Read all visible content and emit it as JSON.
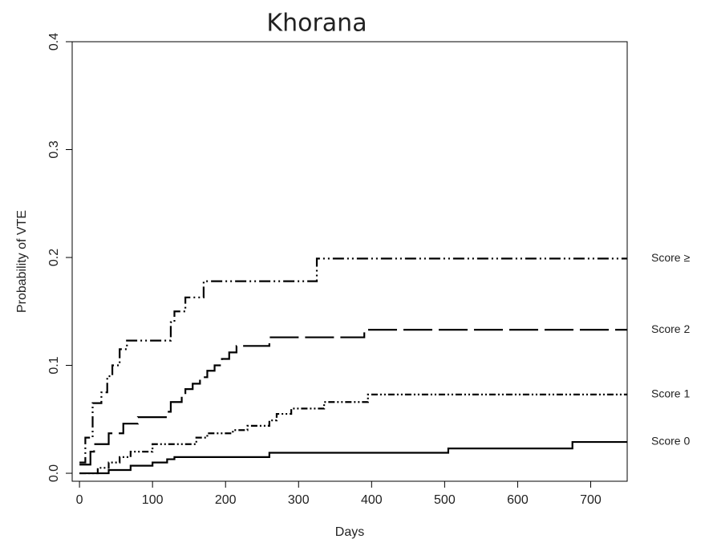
{
  "chart_data": {
    "type": "step",
    "title": "Khorana",
    "xlabel": "Days",
    "ylabel": "Probability of VTE",
    "xlim": [
      -10,
      750
    ],
    "ylim": [
      -0.0074,
      0.4
    ],
    "xticks": [
      0,
      100,
      200,
      300,
      400,
      500,
      600,
      700
    ],
    "yticks": [
      {
        "value": 0,
        "label": "0.0"
      },
      0.1,
      0.2,
      0.3,
      0.4
    ],
    "series": [
      {
        "name": "Score ≥",
        "color": "#000000",
        "x": [
          0,
          8,
          18,
          30,
          38,
          45,
          55,
          65,
          125,
          130,
          145,
          170,
          325,
          750
        ],
        "values": [
          0.01,
          0.033,
          0.065,
          0.075,
          0.09,
          0.1,
          0.115,
          0.123,
          0.14,
          0.15,
          0.163,
          0.178,
          0.199,
          0.199
        ]
      },
      {
        "name": "Score 2",
        "color": "#000000",
        "x": [
          0,
          15,
          20,
          40,
          60,
          80,
          120,
          125,
          140,
          145,
          155,
          165,
          175,
          185,
          195,
          205,
          215,
          260,
          390,
          750
        ],
        "values": [
          0.008,
          0.02,
          0.027,
          0.037,
          0.046,
          0.052,
          0.057,
          0.066,
          0.073,
          0.078,
          0.083,
          0.089,
          0.095,
          0.1,
          0.106,
          0.112,
          0.118,
          0.126,
          0.133,
          0.133
        ]
      },
      {
        "name": "Score 1",
        "color": "#000000",
        "x": [
          0,
          25,
          40,
          55,
          70,
          100,
          160,
          175,
          210,
          230,
          260,
          270,
          290,
          335,
          395,
          750
        ],
        "values": [
          0,
          0.005,
          0.01,
          0.015,
          0.02,
          0.027,
          0.033,
          0.037,
          0.04,
          0.044,
          0.049,
          0.055,
          0.06,
          0.066,
          0.073,
          0.073
        ]
      },
      {
        "name": "Score 0",
        "color": "#000000",
        "x": [
          0,
          40,
          70,
          100,
          120,
          130,
          260,
          505,
          675,
          750
        ],
        "values": [
          0,
          0.003,
          0.007,
          0.01,
          0.013,
          0.015,
          0.019,
          0.023,
          0.029,
          0.029
        ]
      }
    ]
  }
}
